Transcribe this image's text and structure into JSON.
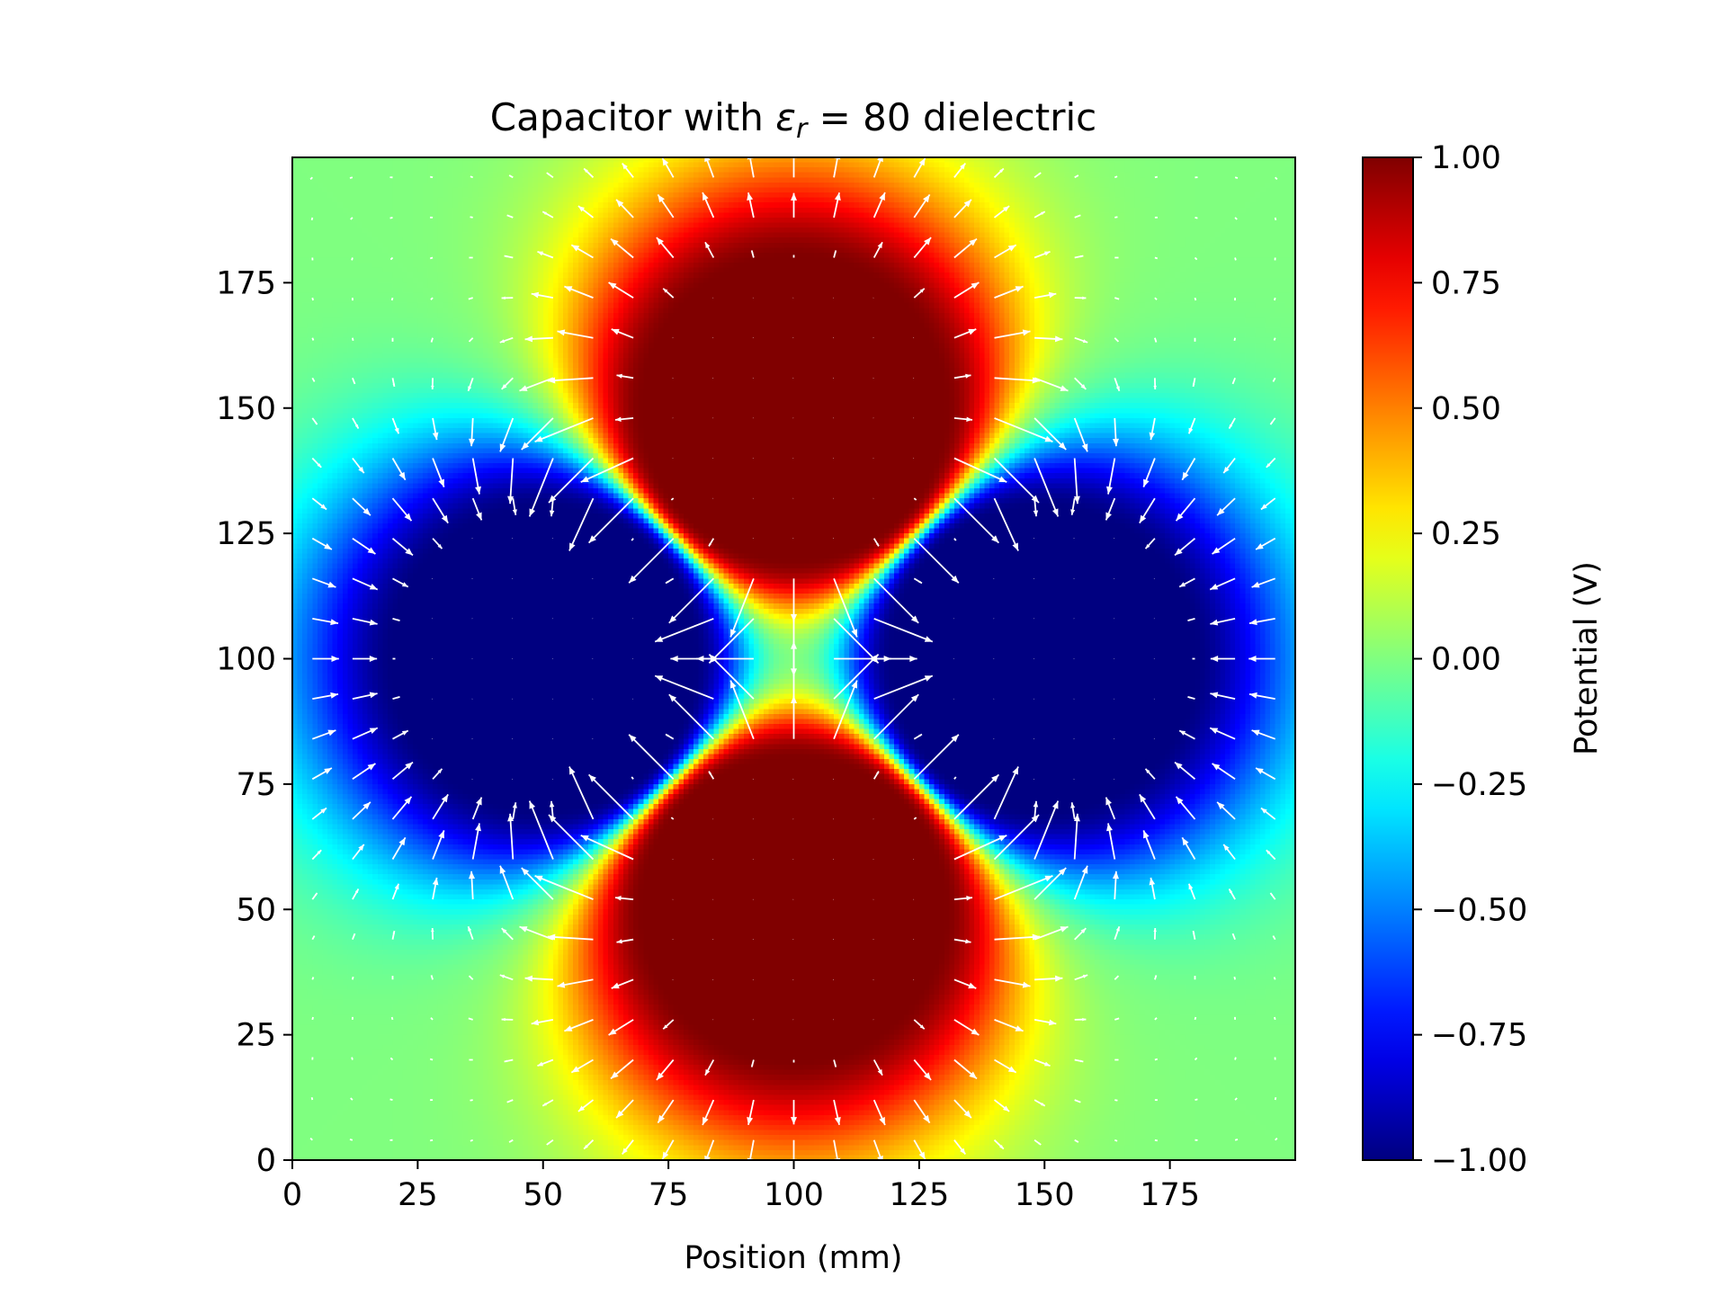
{
  "chart_data": {
    "type": "heatmap",
    "title_prefix": "Capacitor with ",
    "title_symbol": "ε",
    "title_subscript": "r",
    "title_suffix": " = 80 dielectric",
    "xlabel": "Position (mm)",
    "ylabel": "",
    "xlim": [
      0,
      200
    ],
    "ylim": [
      0,
      200
    ],
    "xticks": [
      0,
      25,
      50,
      75,
      100,
      125,
      150,
      175
    ],
    "yticks": [
      0,
      25,
      50,
      75,
      100,
      125,
      150,
      175
    ],
    "xtick_labels": [
      "0",
      "25",
      "50",
      "75",
      "100",
      "125",
      "150",
      "175"
    ],
    "ytick_labels": [
      "0",
      "25",
      "50",
      "75",
      "100",
      "125",
      "150",
      "175"
    ],
    "colorbar": {
      "label": "Potential (V)",
      "range": [
        -1.0,
        1.0
      ],
      "ticks": [
        1.0,
        0.75,
        0.5,
        0.25,
        0.0,
        -0.25,
        -0.5,
        -0.75,
        -1.0
      ],
      "tick_labels": [
        "1.00",
        "0.75",
        "0.50",
        "0.25",
        "0.00",
        "−0.25",
        "−0.50",
        "−0.75",
        "−1.00"
      ],
      "colormap": "jet"
    },
    "electrodes": [
      {
        "name": "top",
        "center": [
          100,
          150
        ],
        "radius": 30,
        "potential": 1.0
      },
      {
        "name": "bottom",
        "center": [
          100,
          50
        ],
        "radius": 30,
        "potential": 1.0
      },
      {
        "name": "left",
        "center": [
          50,
          100
        ],
        "radius": 30,
        "potential": -1.0
      },
      {
        "name": "right",
        "center": [
          150,
          100
        ],
        "radius": 30,
        "potential": -1.0
      }
    ],
    "quiver": {
      "color": "#ffffff",
      "grid_spacing": 8,
      "field": "E = -grad(V)"
    }
  },
  "colors": {
    "background": "#ffffff",
    "axis": "#000000",
    "arrows": "#ffffff"
  }
}
